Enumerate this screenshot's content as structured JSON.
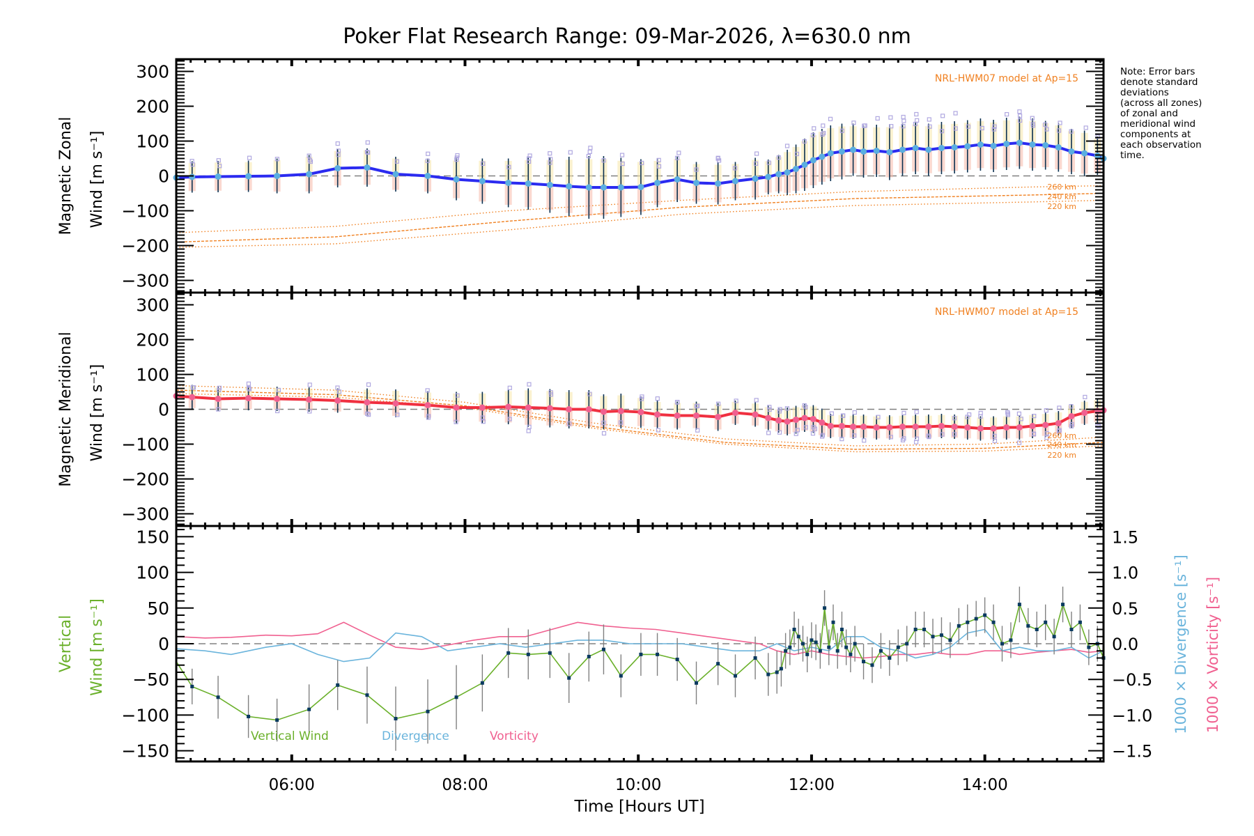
{
  "chart_data": {
    "type": "line",
    "title": "Poker Flat Research Range: 09-Mar-2026, λ=630.0 nm",
    "xlabel": "Time [Hours UT]",
    "xlim_hours": [
      4.667,
      15.37
    ],
    "x_ticks": [
      {
        "h": 6,
        "label": "06:00"
      },
      {
        "h": 8,
        "label": "08:00"
      },
      {
        "h": 10,
        "label": "10:00"
      },
      {
        "h": 12,
        "label": "12:00"
      },
      {
        "h": 14,
        "label": "14:00"
      }
    ],
    "note_lines": [
      "Note: Error bars",
      "denote standard",
      "deviations",
      "(across all zones)",
      "of zonal and",
      "meridional wind",
      "components at",
      "each observation",
      "time."
    ],
    "colors": {
      "zonal_line": "#2b2bf0",
      "zonal_marker": "#5aaee0",
      "meridional_line": "#f03040",
      "meridional_marker": "#f06090",
      "model": "#f08020",
      "errorbar": "#0a3050",
      "zone_points": "#b0a8e0",
      "vertical": "#6ab02a",
      "divergence": "#6ab4dc",
      "vorticity": "#f06090",
      "vert_marker": "#0a3a60",
      "vert_err": "#808080"
    },
    "panels": [
      {
        "id": "zonal",
        "ylabel_line1": "Magnetic Zonal",
        "ylabel_line2": "Wind [m s⁻¹]",
        "ylim": [
          -335,
          335
        ],
        "y_ticks": [
          300,
          200,
          100,
          0,
          -100,
          -200,
          -300
        ],
        "model_label": "NRL-HWM07 model at Ap=15",
        "model_alt_labels": [
          "260 km",
          "240 km",
          "220 km"
        ],
        "series": {
          "name": "Magnetic Zonal Wind",
          "x": [
            4.667,
            4.85,
            5.15,
            5.5,
            5.83,
            6.2,
            6.53,
            6.87,
            7.2,
            7.57,
            7.9,
            8.2,
            8.5,
            8.73,
            8.98,
            9.2,
            9.43,
            9.6,
            9.8,
            10.03,
            10.22,
            10.45,
            10.67,
            10.92,
            11.12,
            11.35,
            11.5,
            11.62,
            11.72,
            11.82,
            11.92,
            12.02,
            12.12,
            12.22,
            12.35,
            12.48,
            12.6,
            12.75,
            12.9,
            13.05,
            13.2,
            13.35,
            13.5,
            13.65,
            13.8,
            13.95,
            14.1,
            14.25,
            14.4,
            14.55,
            14.7,
            14.85,
            15.0,
            15.15,
            15.3,
            15.37
          ],
          "y": [
            -5,
            -3,
            -2,
            -1,
            0,
            5,
            22,
            24,
            5,
            0,
            -10,
            -15,
            -20,
            -22,
            -26,
            -30,
            -33,
            -33,
            -33,
            -32,
            -20,
            -10,
            -20,
            -22,
            -15,
            -8,
            -3,
            5,
            10,
            20,
            32,
            45,
            55,
            65,
            70,
            75,
            70,
            72,
            68,
            75,
            80,
            75,
            80,
            82,
            85,
            90,
            86,
            92,
            95,
            90,
            88,
            82,
            70,
            65,
            58,
            50
          ],
          "err": [
            45,
            45,
            45,
            45,
            50,
            55,
            55,
            55,
            50,
            50,
            60,
            65,
            70,
            75,
            80,
            85,
            90,
            90,
            85,
            80,
            70,
            65,
            60,
            60,
            55,
            60,
            50,
            55,
            65,
            70,
            75,
            80,
            80,
            80,
            80,
            75,
            75,
            75,
            80,
            75,
            75,
            75,
            75,
            75,
            75,
            75,
            75,
            75,
            75,
            75,
            70,
            70,
            65,
            65,
            55,
            55
          ]
        },
        "model_curves": [
          {
            "alt": "260 km",
            "x": [
              4.667,
              6.5,
              8.5,
              10.5,
              12.5,
              14.5,
              15.37
            ],
            "y": [
              -163,
              -145,
              -100,
              -70,
              -45,
              -32,
              -28
            ]
          },
          {
            "alt": "240 km",
            "x": [
              4.667,
              6.5,
              8.5,
              10.5,
              12.5,
              14.5,
              15.37
            ],
            "y": [
              -190,
              -175,
              -130,
              -90,
              -65,
              -55,
              -50
            ]
          },
          {
            "alt": "220 km",
            "x": [
              4.667,
              6.5,
              8.5,
              10.5,
              12.5,
              14.5,
              15.37
            ],
            "y": [
              -205,
              -195,
              -155,
              -110,
              -85,
              -75,
              -70
            ]
          }
        ]
      },
      {
        "id": "meridional",
        "ylabel_line1": "Magnetic Meridional",
        "ylabel_line2": "Wind [m s⁻¹]",
        "ylim": [
          -335,
          335
        ],
        "y_ticks": [
          300,
          200,
          100,
          0,
          -100,
          -200,
          -300
        ],
        "model_label": "NRL-HWM07 model at Ap=15",
        "model_alt_labels": [
          "260 km",
          "240 km",
          "220 km"
        ],
        "series": {
          "name": "Magnetic Meridional Wind",
          "x": [
            4.667,
            4.85,
            5.15,
            5.5,
            5.83,
            6.2,
            6.53,
            6.87,
            7.2,
            7.57,
            7.9,
            8.2,
            8.5,
            8.73,
            8.98,
            9.2,
            9.43,
            9.6,
            9.8,
            10.03,
            10.22,
            10.45,
            10.67,
            10.92,
            11.12,
            11.35,
            11.5,
            11.62,
            11.72,
            11.82,
            11.92,
            12.02,
            12.12,
            12.22,
            12.35,
            12.48,
            12.6,
            12.75,
            12.9,
            13.05,
            13.2,
            13.35,
            13.5,
            13.65,
            13.8,
            13.95,
            14.1,
            14.25,
            14.4,
            14.55,
            14.7,
            14.85,
            15.0,
            15.15,
            15.3,
            15.37
          ],
          "y": [
            38,
            35,
            30,
            32,
            30,
            28,
            25,
            20,
            17,
            12,
            5,
            5,
            7,
            5,
            3,
            0,
            0,
            -7,
            -5,
            -8,
            -15,
            -18,
            -18,
            -22,
            -10,
            -15,
            -25,
            -32,
            -35,
            -30,
            -25,
            -28,
            -38,
            -48,
            -48,
            -50,
            -50,
            -52,
            -52,
            -50,
            -50,
            -50,
            -48,
            -50,
            -52,
            -55,
            -55,
            -52,
            -52,
            -48,
            -45,
            -40,
            -20,
            -10,
            -5,
            -3
          ],
          "err": [
            35,
            35,
            35,
            35,
            35,
            35,
            35,
            40,
            40,
            40,
            45,
            45,
            50,
            55,
            55,
            55,
            55,
            50,
            50,
            45,
            40,
            40,
            40,
            40,
            35,
            35,
            35,
            35,
            40,
            40,
            40,
            40,
            40,
            35,
            35,
            35,
            35,
            35,
            35,
            35,
            35,
            35,
            35,
            35,
            35,
            35,
            35,
            35,
            35,
            35,
            35,
            35,
            35,
            35,
            35,
            35
          ]
        },
        "model_curves": [
          {
            "alt": "260 km",
            "x": [
              4.667,
              6.5,
              8.0,
              9.5,
              11.0,
              12.5,
              14.0,
              15.37
            ],
            "y": [
              68,
              55,
              20,
              -40,
              -85,
              -105,
              -100,
              -80
            ]
          },
          {
            "alt": "240 km",
            "x": [
              4.667,
              6.5,
              8.0,
              9.5,
              11.0,
              12.5,
              14.0,
              15.37
            ],
            "y": [
              55,
              42,
              10,
              -50,
              -95,
              -115,
              -112,
              -95
            ]
          },
          {
            "alt": "220 km",
            "x": [
              4.667,
              6.5,
              8.0,
              9.5,
              11.0,
              12.5,
              14.0,
              15.37
            ],
            "y": [
              45,
              35,
              5,
              -55,
              -100,
              -122,
              -120,
              -105
            ]
          }
        ]
      },
      {
        "id": "vertical",
        "ylabel_line1": "Vertical",
        "ylabel_line2": "Wind [m s⁻¹]",
        "ylim": [
          -165,
          165
        ],
        "y_ticks": [
          150,
          100,
          50,
          0,
          -50,
          -100,
          -150
        ],
        "right_ylim": [
          -1.65,
          1.65
        ],
        "right_y_ticks": [
          1.5,
          1.0,
          0.5,
          0.0,
          -0.5,
          -1.0,
          -1.5
        ],
        "right_y_tick_labels": [
          "1.5",
          "1.0",
          "0.5",
          "0.0",
          "−0.5",
          "−1.0",
          "−1.5"
        ],
        "right_ylabel_divergence": "1000 × Divergence [s⁻¹]",
        "right_ylabel_vorticity": "1000 × Vorticity [s⁻¹]",
        "legend": [
          "Vertical Wind",
          "Divergence",
          "Vorticity"
        ],
        "vertical_wind": {
          "x": [
            4.667,
            4.85,
            5.15,
            5.5,
            5.83,
            6.2,
            6.53,
            6.87,
            7.2,
            7.57,
            7.9,
            8.2,
            8.5,
            8.73,
            8.98,
            9.2,
            9.43,
            9.6,
            9.8,
            10.03,
            10.22,
            10.45,
            10.67,
            10.92,
            11.12,
            11.35,
            11.5,
            11.6,
            11.65,
            11.7,
            11.75,
            11.8,
            11.85,
            11.9,
            11.95,
            12.0,
            12.05,
            12.1,
            12.15,
            12.2,
            12.25,
            12.3,
            12.35,
            12.4,
            12.45,
            12.5,
            12.6,
            12.7,
            12.8,
            12.9,
            13.0,
            13.1,
            13.2,
            13.3,
            13.4,
            13.5,
            13.6,
            13.7,
            13.8,
            13.9,
            14.0,
            14.1,
            14.2,
            14.3,
            14.4,
            14.5,
            14.6,
            14.7,
            14.8,
            14.9,
            15.0,
            15.1,
            15.2,
            15.3,
            15.37
          ],
          "y": [
            -25,
            -60,
            -75,
            -102,
            -107,
            -92,
            -58,
            -72,
            -105,
            -95,
            -75,
            -55,
            -13,
            -15,
            -13,
            -48,
            -18,
            -8,
            -45,
            -15,
            -15,
            -22,
            -55,
            -28,
            -45,
            -20,
            -43,
            -40,
            -35,
            -10,
            -5,
            20,
            10,
            0,
            -15,
            5,
            2,
            -10,
            50,
            -5,
            30,
            -10,
            20,
            -5,
            -15,
            0,
            -25,
            -30,
            -10,
            -20,
            -5,
            0,
            20,
            20,
            10,
            12,
            5,
            25,
            30,
            35,
            40,
            30,
            0,
            5,
            55,
            25,
            20,
            30,
            10,
            55,
            20,
            30,
            -5,
            0,
            -20
          ],
          "err": [
            25,
            25,
            30,
            30,
            30,
            35,
            35,
            40,
            45,
            45,
            45,
            40,
            35,
            35,
            35,
            35,
            35,
            35,
            30,
            30,
            30,
            30,
            30,
            30,
            30,
            30,
            30,
            30,
            25,
            25,
            25,
            25,
            25,
            25,
            25,
            25,
            25,
            25,
            25,
            25,
            25,
            25,
            25,
            25,
            25,
            25,
            25,
            25,
            25,
            25,
            25,
            25,
            25,
            25,
            25,
            25,
            25,
            25,
            25,
            25,
            25,
            25,
            25,
            25,
            25,
            25,
            25,
            25,
            25,
            25,
            25,
            25,
            25,
            25,
            25
          ]
        },
        "divergence": {
          "x": [
            4.667,
            5.0,
            5.3,
            5.7,
            6.0,
            6.3,
            6.6,
            6.9,
            7.2,
            7.5,
            7.8,
            8.1,
            8.4,
            8.7,
            9.0,
            9.3,
            9.6,
            9.9,
            10.2,
            10.5,
            10.8,
            11.1,
            11.4,
            11.6,
            11.8,
            12.0,
            12.2,
            12.4,
            12.6,
            12.8,
            13.0,
            13.2,
            13.4,
            13.6,
            13.8,
            14.0,
            14.2,
            14.4,
            14.6,
            14.8,
            15.0,
            15.2,
            15.37
          ],
          "y": [
            -0.07,
            -0.1,
            -0.15,
            -0.05,
            0.0,
            -0.15,
            -0.25,
            -0.2,
            0.15,
            0.1,
            -0.1,
            -0.05,
            0.0,
            -0.05,
            0.0,
            0.05,
            0.05,
            0.0,
            0.0,
            0.0,
            -0.05,
            -0.1,
            -0.1,
            0.0,
            -0.1,
            -0.05,
            -0.1,
            0.1,
            0.1,
            -0.05,
            -0.1,
            -0.2,
            -0.15,
            -0.05,
            0.15,
            0.2,
            -0.1,
            -0.05,
            -0.1,
            -0.1,
            -0.05,
            -0.2,
            -0.1
          ]
        },
        "vorticity": {
          "x": [
            4.667,
            5.0,
            5.3,
            5.7,
            6.0,
            6.3,
            6.6,
            6.9,
            7.2,
            7.5,
            7.8,
            8.1,
            8.4,
            8.7,
            9.0,
            9.3,
            9.6,
            9.9,
            10.2,
            10.5,
            10.8,
            11.1,
            11.4,
            11.6,
            11.8,
            12.0,
            12.2,
            12.4,
            12.6,
            12.8,
            13.0,
            13.2,
            13.4,
            13.6,
            13.8,
            14.0,
            14.2,
            14.4,
            14.6,
            14.8,
            15.0,
            15.2,
            15.37
          ],
          "y": [
            0.1,
            0.08,
            0.09,
            0.12,
            0.11,
            0.14,
            0.3,
            0.12,
            -0.05,
            -0.08,
            -0.02,
            0.05,
            0.1,
            0.1,
            0.2,
            0.3,
            0.25,
            0.22,
            0.2,
            0.15,
            0.1,
            0.05,
            0.0,
            -0.1,
            -0.15,
            -0.1,
            -0.15,
            -0.18,
            -0.2,
            -0.18,
            -0.15,
            -0.15,
            -0.12,
            -0.15,
            -0.15,
            -0.1,
            -0.1,
            -0.15,
            -0.12,
            -0.1,
            -0.08,
            -0.12,
            -0.1
          ]
        }
      }
    ]
  }
}
